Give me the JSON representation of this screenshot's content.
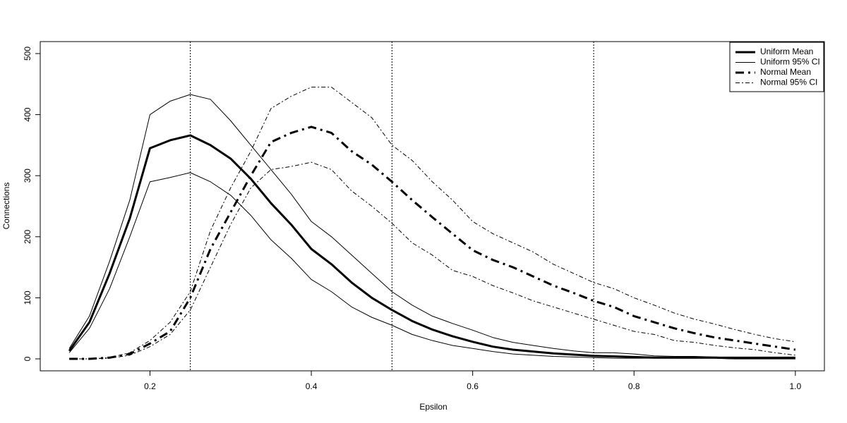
{
  "chart_data": {
    "type": "line",
    "xlabel": "Epsilon",
    "ylabel": "Connections",
    "x": [
      0.1,
      0.125,
      0.15,
      0.175,
      0.2,
      0.225,
      0.25,
      0.275,
      0.3,
      0.325,
      0.35,
      0.375,
      0.4,
      0.425,
      0.45,
      0.475,
      0.5,
      0.525,
      0.55,
      0.575,
      0.6,
      0.625,
      0.65,
      0.675,
      0.7,
      0.725,
      0.75,
      0.775,
      0.8,
      0.825,
      0.85,
      0.875,
      0.9,
      0.925,
      0.95,
      0.975,
      1.0
    ],
    "series": [
      {
        "name": "Uniform Mean",
        "color": "#000000",
        "linestyle": "solid",
        "linewidth": 3,
        "values": [
          13,
          60,
          140,
          230,
          345,
          358,
          366,
          350,
          328,
          295,
          255,
          220,
          180,
          155,
          125,
          100,
          80,
          62,
          48,
          37,
          28,
          20,
          15,
          12,
          9,
          7,
          5,
          4,
          3,
          2,
          2,
          2,
          2,
          1,
          1,
          1,
          1
        ]
      },
      {
        "name": "Uniform 95% CI",
        "color": "#000000",
        "linestyle": "solid",
        "linewidth": 1,
        "values": [
          17,
          70,
          160,
          260,
          400,
          422,
          433,
          425,
          390,
          350,
          310,
          270,
          225,
          200,
          170,
          140,
          110,
          88,
          70,
          58,
          47,
          35,
          27,
          22,
          17,
          13,
          10,
          10,
          8,
          5,
          4,
          4,
          3,
          3,
          3,
          3,
          3
        ]
      },
      {
        "name": "Uniform 95% CI",
        "color": "#000000",
        "linestyle": "solid",
        "linewidth": 1,
        "values": [
          10,
          50,
          115,
          200,
          290,
          297,
          305,
          290,
          268,
          235,
          195,
          165,
          130,
          110,
          85,
          68,
          55,
          40,
          30,
          22,
          17,
          12,
          8,
          6,
          4,
          3,
          2,
          1,
          1,
          1,
          1,
          1,
          1,
          0,
          0,
          0,
          0
        ]
      },
      {
        "name": "Normal Mean",
        "color": "#000000",
        "linestyle": "dashdot",
        "linewidth": 3,
        "values": [
          0,
          0,
          2,
          8,
          25,
          45,
          100,
          180,
          240,
          300,
          355,
          370,
          380,
          370,
          340,
          318,
          290,
          260,
          232,
          205,
          178,
          162,
          150,
          135,
          120,
          108,
          95,
          85,
          70,
          60,
          50,
          42,
          35,
          30,
          25,
          20,
          15
        ]
      },
      {
        "name": "Normal 95% CI",
        "color": "#000000",
        "linestyle": "dashdot",
        "linewidth": 1,
        "values": [
          0,
          0,
          2,
          10,
          30,
          60,
          110,
          210,
          280,
          340,
          410,
          430,
          445,
          445,
          420,
          395,
          350,
          325,
          290,
          260,
          225,
          205,
          190,
          175,
          155,
          140,
          125,
          115,
          100,
          88,
          75,
          65,
          57,
          48,
          40,
          33,
          28
        ]
      },
      {
        "name": "Normal 95% CI",
        "color": "#000000",
        "linestyle": "dashdot",
        "linewidth": 1,
        "values": [
          0,
          0,
          1,
          6,
          20,
          40,
          80,
          150,
          220,
          280,
          310,
          315,
          322,
          310,
          275,
          250,
          222,
          190,
          170,
          145,
          135,
          120,
          108,
          95,
          85,
          75,
          65,
          55,
          45,
          40,
          30,
          27,
          22,
          18,
          15,
          10,
          6
        ]
      }
    ],
    "vlines": [
      0.25,
      0.5,
      0.75
    ],
    "xlim": [
      0.064,
      1.036
    ],
    "xticks": [
      0.2,
      0.4,
      0.6,
      0.8,
      {
        "value": 1.0,
        "label": "1.0"
      }
    ],
    "ylim": [
      -19.6,
      519.6
    ],
    "yticks": [
      0,
      100,
      200,
      300,
      400,
      500
    ],
    "legend": "top-right"
  }
}
